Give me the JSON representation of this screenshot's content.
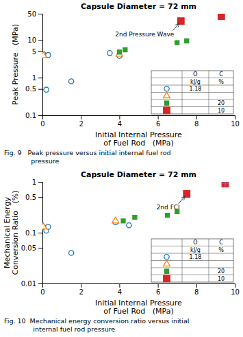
{
  "chart_data": [
    {
      "type": "scatter",
      "title": "Capsule Diameter = 72 mm",
      "xlabel": "Initial Internal Pressure\nof Fuel Rod   (MPa)",
      "ylabel": "Peak Pressure   (MPa)",
      "caption": "Fig. 9   Peak pressure versus initial internal fuel rod\n             pressure",
      "log": "y",
      "xlim": [
        0,
        10
      ],
      "ylim": [
        0.1,
        50
      ],
      "xticks": [
        0,
        2,
        4,
        6,
        8,
        10
      ],
      "yticks": [
        0.1,
        0.5,
        1,
        5,
        10,
        50
      ],
      "legend_columns": [
        "O",
        "C"
      ],
      "legend_units": [
        "kJ/g",
        "%"
      ],
      "annotation": {
        "text": "2nd Pressure Wave",
        "x": 7.2,
        "y": 32.0
      },
      "series": [
        {
          "marker": "circle",
          "energy": 1.18,
          "x": [
            0.05,
            0.3,
            1.5,
            3.5,
            4.0,
            0.2
          ],
          "values": [
            4.2,
            4.0,
            0.8,
            4.5,
            3.8,
            0.48
          ]
        },
        {
          "marker": "triangle",
          "x": [
            0.05,
            4.0
          ],
          "values": [
            3.8,
            4.2
          ]
        },
        {
          "marker": "square",
          "enrichment": 20,
          "x": [
            4.0,
            4.3,
            7.0,
            7.5
          ],
          "values": [
            4.8,
            5.5,
            8.5,
            9.5
          ]
        },
        {
          "marker": "large-square",
          "enrichment": 10,
          "x": [
            7.2,
            9.3
          ],
          "values": [
            32.0,
            43.0
          ]
        }
      ]
    },
    {
      "type": "scatter",
      "title": "Capsule Diameter = 72 mm",
      "xlabel": "Initial Internal Pressure\nof Fuel Rod   (MPa)",
      "ylabel": "Mechanical Energy\nConversion Ratio   (%)",
      "caption": "Fig. 10  Mechanical energy conversion ratio versus initial\n              internal fuel rod pressure",
      "log": "y",
      "xlim": [
        0,
        10
      ],
      "ylim": [
        0.01,
        1
      ],
      "xticks": [
        0,
        2,
        4,
        6,
        8,
        10
      ],
      "yticks": [
        0.01,
        0.05,
        0.1,
        0.5,
        1
      ],
      "legend_columns": [
        "O",
        "C"
      ],
      "legend_units": [
        "kJ/g",
        "%"
      ],
      "annotation": {
        "text": "2nd FCI",
        "x": 7.5,
        "y": 0.58
      },
      "series": [
        {
          "marker": "circle",
          "energy": 1.18,
          "x": [
            0.05,
            0.2,
            0.3,
            1.5,
            3.8,
            4.5
          ],
          "values": [
            0.13,
            0.11,
            0.13,
            0.04,
            0.16,
            0.14
          ]
        },
        {
          "marker": "triangle",
          "x": [
            0.05,
            3.8
          ],
          "values": [
            0.13,
            0.17
          ]
        },
        {
          "marker": "square",
          "enrichment": 20,
          "x": [
            4.2,
            4.8,
            6.5,
            7.0
          ],
          "values": [
            0.17,
            0.2,
            0.22,
            0.26
          ]
        },
        {
          "marker": "large-square",
          "enrichment": 10,
          "x": [
            7.5,
            9.5
          ],
          "values": [
            0.58,
            0.92
          ]
        },
        {
          "marker": "plus",
          "in_legend": false,
          "x": [
            9.5
          ],
          "values": [
            0.95
          ]
        }
      ]
    }
  ]
}
